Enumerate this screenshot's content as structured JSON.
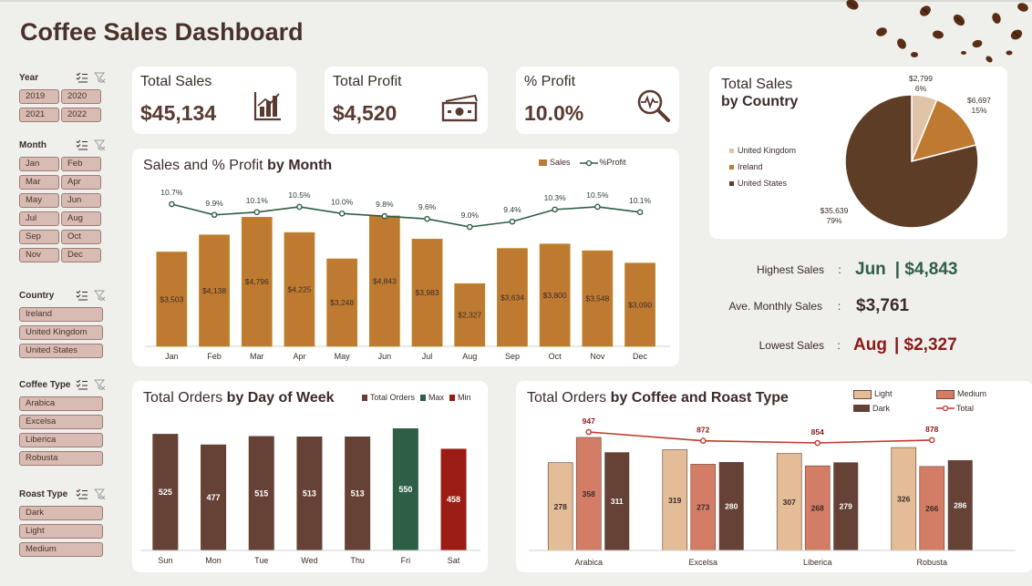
{
  "title": "Coffee Sales Dashboard",
  "slicers": {
    "year": {
      "label": "Year",
      "items": [
        "2019",
        "2020",
        "2021",
        "2022"
      ]
    },
    "month": {
      "label": "Month",
      "items": [
        "Jan",
        "Feb",
        "Mar",
        "Apr",
        "May",
        "Jun",
        "Jul",
        "Aug",
        "Sep",
        "Oct",
        "Nov",
        "Dec"
      ]
    },
    "country": {
      "label": "Country",
      "items": [
        "Ireland",
        "United Kingdom",
        "United States"
      ]
    },
    "coffee_type": {
      "label": "Coffee Type",
      "items": [
        "Arabica",
        "Excelsa",
        "Liberica",
        "Robusta"
      ]
    },
    "roast_type": {
      "label": "Roast Type",
      "items": [
        "Dark",
        "Light",
        "Medium"
      ]
    }
  },
  "kpis": {
    "total_sales": {
      "label": "Total Sales",
      "value": "$45,134",
      "icon": "bar-chart-icon"
    },
    "total_profit": {
      "label": "Total Profit",
      "value": "$4,520",
      "icon": "cash-icon"
    },
    "pct_profit": {
      "label": "% Profit",
      "value": "10.0%",
      "icon": "magnifier-pulse-icon"
    }
  },
  "stats": {
    "highest": {
      "label": "Highest Sales",
      "month": "Jun",
      "value": "| $4,843",
      "color": "#2e5e45"
    },
    "average": {
      "label": "Ave. Monthly Sales",
      "value": "$3,761",
      "color": "#3b2c28"
    },
    "lowest": {
      "label": "Lowest Sales",
      "month": "Aug",
      "value": "| $2,327",
      "color": "#8b1a1a"
    }
  },
  "colors": {
    "brown": "#bf7a31",
    "dark": "#654136",
    "green_line": "#2e5e45",
    "fri": "#2e5e45",
    "sat": "#9b1c14",
    "light": "#e3bc98",
    "medium": "#d47d66",
    "total_line": "#c0392b"
  },
  "chart_data": [
    {
      "id": "monthly",
      "type": "bar",
      "title_pre": "Sales and % Profit ",
      "title_bold": "by Month",
      "categories": [
        "Jan",
        "Feb",
        "Mar",
        "Apr",
        "May",
        "Jun",
        "Jul",
        "Aug",
        "Sep",
        "Oct",
        "Nov",
        "Dec"
      ],
      "series": [
        {
          "name": "Sales",
          "type": "bar",
          "values": [
            3503,
            4138,
            4796,
            4225,
            3248,
            4843,
            3983,
            2327,
            3634,
            3800,
            3548,
            3090
          ],
          "labels": [
            "$3,503",
            "$4,138",
            "$4,796",
            "$4,225",
            "$3,248",
            "$4,843",
            "$3,983",
            "$2,327",
            "$3,634",
            "$3,800",
            "$3,548",
            "$3,090"
          ]
        },
        {
          "name": "%Profit",
          "type": "line",
          "values": [
            10.7,
            9.9,
            10.1,
            10.5,
            10.0,
            9.8,
            9.6,
            9.0,
            9.4,
            10.3,
            10.5,
            10.1
          ],
          "labels": [
            "10.7%",
            "9.9%",
            "10.1%",
            "10.5%",
            "10.0%",
            "9.8%",
            "9.6%",
            "9.0%",
            "9.4%",
            "10.3%",
            "10.5%",
            "10.1%"
          ]
        }
      ]
    },
    {
      "id": "weekday",
      "type": "bar",
      "title_pre": "Total Orders ",
      "title_bold": "by Day of Week",
      "legend": [
        "Total Orders",
        "Max",
        "Min"
      ],
      "categories": [
        "Sun",
        "Mon",
        "Tue",
        "Wed",
        "Thu",
        "Fri",
        "Sat"
      ],
      "values": [
        525,
        477,
        515,
        513,
        513,
        550,
        458
      ],
      "max_index": 5,
      "min_index": 6
    },
    {
      "id": "coffee_roast",
      "type": "bar",
      "title_pre": "Total Orders ",
      "title_bold": "by Coffee and Roast Type",
      "categories": [
        "Arabica",
        "Excelsa",
        "Liberica",
        "Robusta"
      ],
      "series": [
        {
          "name": "Light",
          "values": [
            278,
            319,
            307,
            326
          ]
        },
        {
          "name": "Medium",
          "values": [
            358,
            273,
            268,
            266
          ]
        },
        {
          "name": "Dark",
          "values": [
            311,
            280,
            279,
            286
          ]
        },
        {
          "name": "Total",
          "type": "line",
          "values": [
            947,
            872,
            854,
            878
          ]
        }
      ]
    },
    {
      "id": "country_pie",
      "type": "pie",
      "title_pre": "Total Sales",
      "title_bold": "by Country",
      "slices": [
        {
          "name": "United Kingdom",
          "value": 2799,
          "label": "$2,799",
          "pct": "6%",
          "color": "#dfc3a8"
        },
        {
          "name": "Ireland",
          "value": 6697,
          "label": "$6,697",
          "pct": "15%",
          "color": "#bf7a31"
        },
        {
          "name": "United States",
          "value": 35639,
          "label": "$35,639",
          "pct": "79%",
          "color": "#5e3d26"
        }
      ]
    }
  ]
}
